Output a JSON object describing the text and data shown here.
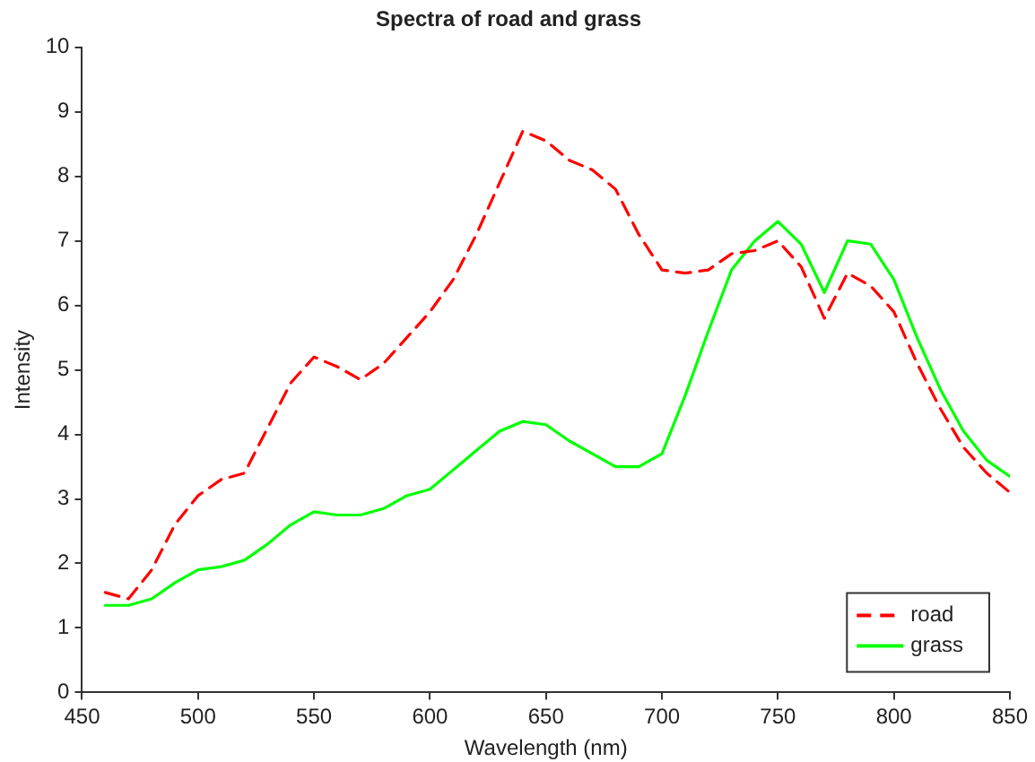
{
  "chart_data": {
    "type": "line",
    "title": "Spectra of road and grass",
    "xlabel": "Wavelength (nm)",
    "ylabel": "Intensity",
    "x": [
      460,
      470,
      480,
      490,
      500,
      510,
      520,
      530,
      540,
      550,
      560,
      570,
      580,
      590,
      600,
      610,
      620,
      630,
      640,
      650,
      660,
      670,
      680,
      690,
      700,
      710,
      720,
      730,
      740,
      750,
      760,
      770,
      780,
      790,
      800,
      810,
      820,
      830,
      840,
      850
    ],
    "series": [
      {
        "name": "road",
        "color": "#ff0000",
        "line_style": "dashed",
        "values": [
          1.55,
          1.45,
          1.9,
          2.6,
          3.05,
          3.3,
          3.4,
          4.1,
          4.8,
          5.2,
          5.05,
          4.85,
          5.1,
          5.5,
          5.9,
          6.4,
          7.1,
          7.9,
          8.7,
          8.55,
          8.25,
          8.1,
          7.8,
          7.1,
          6.55,
          6.5,
          6.55,
          6.8,
          6.85,
          7.0,
          6.6,
          5.8,
          6.5,
          6.3,
          5.9,
          5.1,
          4.4,
          3.8,
          3.4,
          3.1
        ]
      },
      {
        "name": "grass",
        "color": "#00ff00",
        "line_style": "solid",
        "values": [
          1.35,
          1.35,
          1.45,
          1.7,
          1.9,
          1.95,
          2.05,
          2.3,
          2.6,
          2.8,
          2.75,
          2.75,
          2.85,
          3.05,
          3.15,
          3.45,
          3.75,
          4.05,
          4.2,
          4.15,
          3.9,
          3.7,
          3.5,
          3.5,
          3.7,
          4.6,
          5.6,
          6.55,
          7.0,
          7.3,
          6.95,
          6.2,
          7.0,
          6.95,
          6.4,
          5.5,
          4.7,
          4.05,
          3.6,
          3.35
        ]
      }
    ],
    "xlim": [
      450,
      850
    ],
    "xticks": [
      450,
      500,
      550,
      600,
      650,
      700,
      750,
      800,
      850
    ],
    "ylim": [
      0,
      10
    ],
    "yticks": [
      0,
      1,
      2,
      3,
      4,
      5,
      6,
      7,
      8,
      9,
      10
    ],
    "grid": false,
    "legend": "bottom right",
    "marker": "none"
  }
}
